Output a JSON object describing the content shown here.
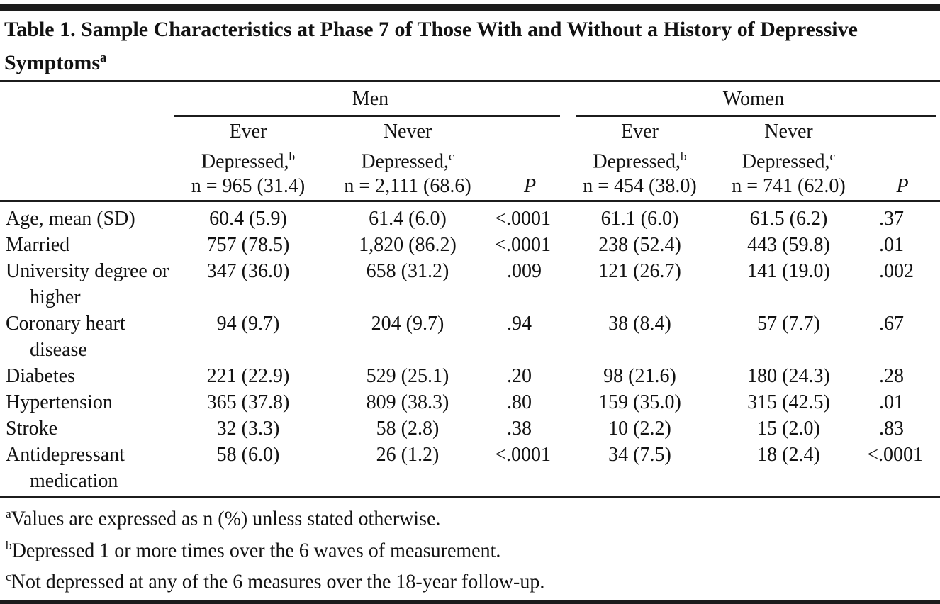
{
  "page": {
    "title": "Table 1. Sample Characteristics at Phase 7 of Those With and Without a History of Depressive Symptoms",
    "title_sup": "a"
  },
  "header": {
    "groups": [
      {
        "label": "Men",
        "p": "P",
        "cols": [
          {
            "l1": "Ever",
            "l2": "Depressed,",
            "sup": "b",
            "n": "n = 965 (31.4)"
          },
          {
            "l1": "Never",
            "l2": "Depressed,",
            "sup": "c",
            "n": "n = 2,111 (68.6)"
          }
        ]
      },
      {
        "label": "Women",
        "p": "P",
        "cols": [
          {
            "l1": "Ever",
            "l2": "Depressed,",
            "sup": "b",
            "n": "n = 454 (38.0)"
          },
          {
            "l1": "Never",
            "l2": "Depressed,",
            "sup": "c",
            "n": "n = 741 (62.0)"
          }
        ]
      }
    ]
  },
  "rows": [
    {
      "label": "Age, mean (SD)",
      "values": [
        "60.4 (5.9)",
        "61.4 (6.0)",
        "<.0001",
        "61.1 (6.0)",
        "61.5 (6.2)",
        ".37"
      ]
    },
    {
      "label": "Married",
      "values": [
        "757 (78.5)",
        "1,820 (86.2)",
        "<.0001",
        "238 (52.4)",
        "443 (59.8)",
        ".01"
      ]
    },
    {
      "label": "University degree or higher",
      "values": [
        "347 (36.0)",
        "658 (31.2)",
        ".009",
        "121 (26.7)",
        "141 (19.0)",
        ".002"
      ]
    },
    {
      "label": "Coronary heart disease",
      "values": [
        "94 (9.7)",
        "204 (9.7)",
        ".94",
        "38 (8.4)",
        "57 (7.7)",
        ".67"
      ]
    },
    {
      "label": "Diabetes",
      "values": [
        "221 (22.9)",
        "529 (25.1)",
        ".20",
        "98 (21.6)",
        "180 (24.3)",
        ".28"
      ]
    },
    {
      "label": "Hypertension",
      "values": [
        "365 (37.8)",
        "809 (38.3)",
        ".80",
        "159 (35.0)",
        "315 (42.5)",
        ".01"
      ]
    },
    {
      "label": "Stroke",
      "values": [
        "32 (3.3)",
        "58 (2.8)",
        ".38",
        "10 (2.2)",
        "15 (2.0)",
        ".83"
      ]
    },
    {
      "label": "Antidepressant medication",
      "values": [
        "58 (6.0)",
        "26 (1.2)",
        "<.0001",
        "34 (7.5)",
        "18 (2.4)",
        "<.0001"
      ]
    }
  ],
  "footnotes": [
    {
      "marker": "a",
      "text": "Values are expressed as n (%) unless stated otherwise."
    },
    {
      "marker": "b",
      "text": "Depressed 1 or more times over the 6 waves of measurement."
    },
    {
      "marker": "c",
      "text": "Not depressed at any of the 6 measures over the 18-year follow-up."
    }
  ]
}
